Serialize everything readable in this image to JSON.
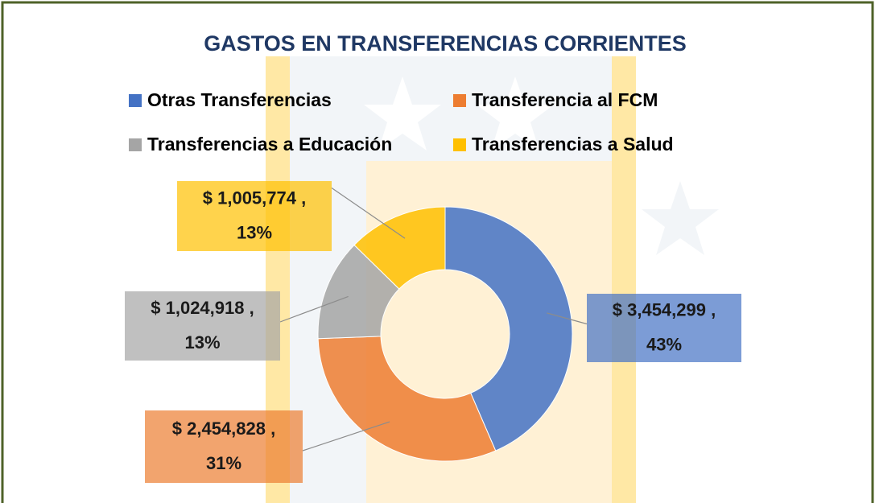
{
  "chart_data": {
    "type": "donut",
    "title": "GASTOS EN TRANSFERENCIAS CORRIENTES",
    "categories": [
      "Otras Transferencias",
      "Transferencia al FCM",
      "Transferencias a Educación",
      "Transferencias a Salud"
    ],
    "values": [
      3454299,
      2454828,
      1024918,
      1005774
    ],
    "value_labels": [
      "$ 3,454,299",
      "$ 2,454,828",
      "$ 1,024,918",
      "$ 1,005,774"
    ],
    "label_separator": " ,",
    "percents": [
      43,
      31,
      13,
      13
    ],
    "percent_labels": [
      "43%",
      "31%",
      "13%",
      "13%"
    ],
    "colors": [
      "#4472c4",
      "#ed7d31",
      "#a5a5a5",
      "#ffc000"
    ]
  }
}
